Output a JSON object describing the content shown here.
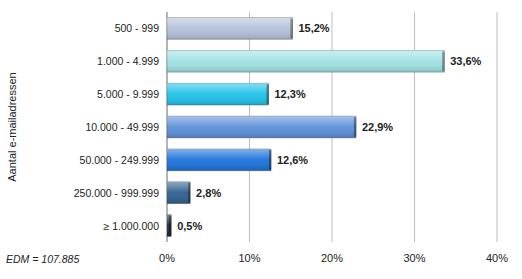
{
  "chart_data": {
    "type": "bar",
    "orientation": "horizontal",
    "y_label": "Aantal e-mailadressen",
    "annotation": "EDM = 107.885",
    "categories": [
      "500 - 999",
      "1.000 - 4.999",
      "5.000 - 9.999",
      "10.000 - 49.999",
      "50.000 - 249.999",
      "250.000 - 999.999",
      "≥ 1.000.000"
    ],
    "values": [
      15.2,
      33.6,
      12.3,
      22.9,
      12.6,
      2.8,
      0.5
    ],
    "value_labels": [
      "15,2%",
      "33,6%",
      "12,3%",
      "22,9%",
      "12,6%",
      "2,8%",
      "0,5%"
    ],
    "colors": [
      "#b4c2d8",
      "#9fe2e4",
      "#1fc2ea",
      "#5d8fd8",
      "#1c72da",
      "#2f5f8e",
      "#1b2a45"
    ],
    "xlim": [
      0,
      40
    ],
    "xticks": [
      {
        "value": 0,
        "label": "0%"
      },
      {
        "value": 10,
        "label": "10%"
      },
      {
        "value": 20,
        "label": "20%"
      },
      {
        "value": 30,
        "label": "30%"
      },
      {
        "value": 40,
        "label": "40%"
      }
    ],
    "grid": true,
    "data_labels": true
  }
}
